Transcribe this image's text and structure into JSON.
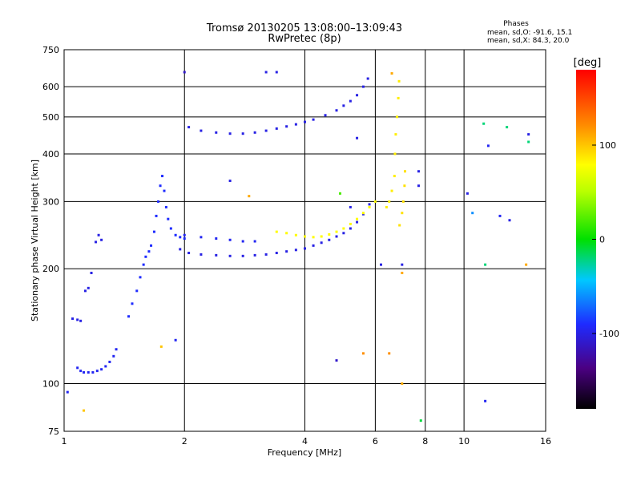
{
  "chart_data": {
    "type": "scatter",
    "title": "Tromsø 20130205 13:08:00–13:09:43",
    "subtitle": "RwPretec (8p)",
    "xlabel": "Frequency [MHz]",
    "ylabel": "Stationary phase Virtual Height [km]",
    "x_scale": "log",
    "y_scale": "log",
    "xlim": [
      1,
      16
    ],
    "ylim": [
      75,
      750
    ],
    "x_ticks": [
      1,
      2,
      4,
      6,
      8,
      10,
      16
    ],
    "x_tick_labels": [
      "1",
      "2",
      "4",
      "6",
      "8",
      "10",
      "16"
    ],
    "x_gridlines": [
      2,
      4,
      6,
      8,
      10
    ],
    "y_ticks": [
      75,
      100,
      200,
      300,
      400,
      500,
      600,
      750
    ],
    "y_tick_labels": [
      "75",
      "100",
      "200",
      "300",
      "400",
      "500",
      "600",
      "750"
    ],
    "y_gridlines": [
      100,
      200,
      300,
      400,
      500,
      600
    ],
    "grid": true,
    "stats": {
      "heading": "Phases",
      "line_o": "mean, sd,O: -91.6, 15.1",
      "line_x": "mean, sd,X:  84.3, 20.0"
    },
    "colorbar": {
      "label": "[deg]",
      "range": [
        -180,
        180
      ],
      "tick_values": [
        100,
        0,
        -100
      ],
      "tick_labels": [
        "100",
        "0",
        "-100"
      ]
    },
    "o_mode_phase_deg": -91.6,
    "x_mode_phase_deg": 84.3,
    "traces": [
      {
        "mode": "O",
        "phase_deg": -95,
        "points": [
          [
            1.08,
            110
          ],
          [
            1.1,
            108
          ],
          [
            1.12,
            107
          ],
          [
            1.15,
            107
          ],
          [
            1.18,
            107
          ],
          [
            1.21,
            108
          ],
          [
            1.24,
            109
          ],
          [
            1.27,
            111
          ],
          [
            1.3,
            114
          ],
          [
            1.33,
            118
          ],
          [
            1.35,
            123
          ]
        ]
      },
      {
        "mode": "O",
        "phase_deg": -100,
        "points": [
          [
            1.05,
            148
          ],
          [
            1.08,
            147
          ],
          [
            1.1,
            146
          ],
          [
            1.13,
            175
          ],
          [
            1.15,
            178
          ],
          [
            1.17,
            195
          ],
          [
            1.2,
            235
          ],
          [
            1.22,
            245
          ],
          [
            1.24,
            238
          ]
        ]
      },
      {
        "mode": "O",
        "phase_deg": -90,
        "points": [
          [
            1.45,
            150
          ],
          [
            1.48,
            162
          ],
          [
            1.52,
            175
          ],
          [
            1.55,
            190
          ],
          [
            1.58,
            205
          ],
          [
            1.6,
            215
          ],
          [
            1.63,
            222
          ],
          [
            1.65,
            230
          ],
          [
            1.68,
            250
          ],
          [
            1.7,
            275
          ],
          [
            1.72,
            300
          ],
          [
            1.74,
            330
          ],
          [
            1.76,
            350
          ],
          [
            1.78,
            320
          ],
          [
            1.8,
            290
          ],
          [
            1.82,
            270
          ],
          [
            1.85,
            255
          ],
          [
            1.9,
            245
          ],
          [
            1.95,
            242
          ],
          [
            2.0,
            240
          ]
        ]
      },
      {
        "mode": "O",
        "phase_deg": -100,
        "points": [
          [
            1.95,
            225
          ],
          [
            2.05,
            220
          ],
          [
            2.2,
            218
          ],
          [
            2.4,
            217
          ],
          [
            2.6,
            216
          ],
          [
            2.8,
            216
          ],
          [
            3.0,
            217
          ],
          [
            3.2,
            218
          ],
          [
            3.4,
            220
          ],
          [
            3.6,
            222
          ],
          [
            3.8,
            224
          ],
          [
            4.0,
            226
          ],
          [
            4.2,
            230
          ],
          [
            4.4,
            234
          ],
          [
            4.6,
            238
          ],
          [
            4.8,
            243
          ],
          [
            5.0,
            248
          ],
          [
            5.2,
            255
          ],
          [
            5.4,
            265
          ],
          [
            5.6,
            278
          ],
          [
            5.8,
            295
          ]
        ]
      },
      {
        "mode": "O",
        "phase_deg": -95,
        "points": [
          [
            2.0,
            245
          ],
          [
            2.2,
            242
          ],
          [
            2.4,
            240
          ],
          [
            2.6,
            238
          ],
          [
            2.8,
            236
          ],
          [
            3.0,
            236
          ]
        ]
      },
      {
        "mode": "O",
        "phase_deg": -100,
        "points": [
          [
            2.05,
            470
          ],
          [
            2.2,
            460
          ],
          [
            2.4,
            455
          ],
          [
            2.6,
            452
          ],
          [
            2.8,
            452
          ],
          [
            3.0,
            455
          ],
          [
            3.2,
            460
          ],
          [
            3.4,
            466
          ],
          [
            3.6,
            472
          ],
          [
            3.8,
            478
          ],
          [
            4.0,
            485
          ],
          [
            4.2,
            492
          ],
          [
            4.5,
            505
          ],
          [
            4.8,
            520
          ],
          [
            5.0,
            535
          ],
          [
            5.2,
            550
          ],
          [
            5.4,
            570
          ],
          [
            5.6,
            600
          ],
          [
            5.75,
            630
          ]
        ]
      },
      {
        "mode": "X",
        "phase_deg": 80,
        "points": [
          [
            3.4,
            250
          ],
          [
            3.6,
            248
          ],
          [
            3.8,
            245
          ],
          [
            4.0,
            243
          ],
          [
            4.2,
            242
          ],
          [
            4.4,
            243
          ],
          [
            4.6,
            246
          ],
          [
            4.8,
            250
          ],
          [
            5.0,
            255
          ],
          [
            5.2,
            262
          ],
          [
            5.4,
            270
          ],
          [
            5.6,
            280
          ],
          [
            5.8,
            290
          ],
          [
            6.0,
            300
          ]
        ]
      },
      {
        "mode": "X",
        "phase_deg": 85,
        "points": [
          [
            6.4,
            290
          ],
          [
            6.5,
            300
          ],
          [
            6.6,
            320
          ],
          [
            6.7,
            350
          ],
          [
            6.72,
            400
          ],
          [
            6.75,
            450
          ],
          [
            6.8,
            500
          ],
          [
            6.85,
            560
          ],
          [
            6.88,
            620
          ]
        ]
      },
      {
        "mode": "X",
        "phase_deg": 90,
        "points": [
          [
            6.9,
            260
          ],
          [
            7.0,
            280
          ],
          [
            7.05,
            300
          ],
          [
            7.1,
            330
          ],
          [
            7.12,
            360
          ]
        ]
      }
    ],
    "isolated_points": [
      {
        "x": 3.2,
        "y": 655,
        "phase_deg": -100
      },
      {
        "x": 3.4,
        "y": 655,
        "phase_deg": -100
      },
      {
        "x": 1.02,
        "y": 95,
        "phase_deg": -95
      },
      {
        "x": 1.12,
        "y": 85,
        "phase_deg": 100
      },
      {
        "x": 7.8,
        "y": 80,
        "phase_deg": -10
      },
      {
        "x": 11.3,
        "y": 90,
        "phase_deg": -95
      },
      {
        "x": 11.2,
        "y": 480,
        "phase_deg": -20
      },
      {
        "x": 12.8,
        "y": 470,
        "phase_deg": -20
      },
      {
        "x": 11.5,
        "y": 420,
        "phase_deg": -95
      },
      {
        "x": 14.5,
        "y": 450,
        "phase_deg": -100
      },
      {
        "x": 14.5,
        "y": 430,
        "phase_deg": -20
      },
      {
        "x": 10.2,
        "y": 315,
        "phase_deg": -100
      },
      {
        "x": 10.5,
        "y": 280,
        "phase_deg": -60
      },
      {
        "x": 12.3,
        "y": 275,
        "phase_deg": -95
      },
      {
        "x": 13.0,
        "y": 268,
        "phase_deg": -100
      },
      {
        "x": 11.3,
        "y": 205,
        "phase_deg": -20
      },
      {
        "x": 14.3,
        "y": 205,
        "phase_deg": 110
      },
      {
        "x": 7.7,
        "y": 360,
        "phase_deg": -100
      },
      {
        "x": 7.7,
        "y": 330,
        "phase_deg": -100
      },
      {
        "x": 4.8,
        "y": 115,
        "phase_deg": -110
      },
      {
        "x": 5.6,
        "y": 120,
        "phase_deg": 120
      },
      {
        "x": 6.5,
        "y": 120,
        "phase_deg": 120
      },
      {
        "x": 7.0,
        "y": 100,
        "phase_deg": 110
      },
      {
        "x": 6.2,
        "y": 205,
        "phase_deg": -100
      },
      {
        "x": 7.0,
        "y": 205,
        "phase_deg": -100
      },
      {
        "x": 7.0,
        "y": 195,
        "phase_deg": 110
      },
      {
        "x": 6.6,
        "y": 650,
        "phase_deg": 110
      },
      {
        "x": 2.6,
        "y": 340,
        "phase_deg": -100
      },
      {
        "x": 2.9,
        "y": 310,
        "phase_deg": 110
      },
      {
        "x": 1.9,
        "y": 130,
        "phase_deg": -95
      },
      {
        "x": 1.75,
        "y": 125,
        "phase_deg": 100
      },
      {
        "x": 2.0,
        "y": 655,
        "phase_deg": -110
      },
      {
        "x": 5.4,
        "y": 440,
        "phase_deg": -100
      },
      {
        "x": 4.9,
        "y": 315,
        "phase_deg": 20
      },
      {
        "x": 5.2,
        "y": 290,
        "phase_deg": -100
      }
    ]
  }
}
